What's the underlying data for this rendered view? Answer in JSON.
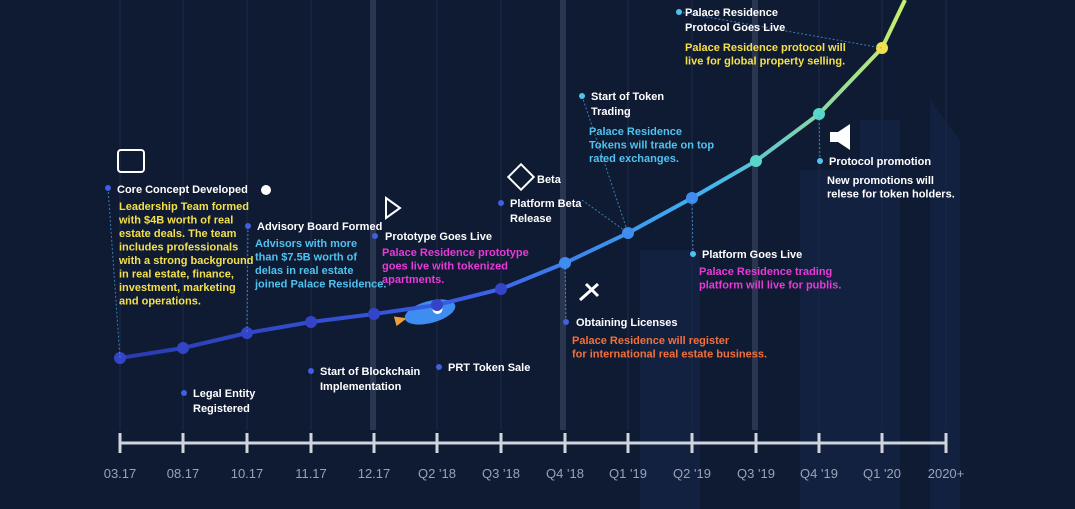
{
  "axis_labels": [
    "03.17",
    "08.17",
    "10.17",
    "11.17",
    "12.17",
    "Q2 '18",
    "Q3 '18",
    "Q4 '18",
    "Q1 '19",
    "Q2 '19",
    "Q3 '19",
    "Q4 '19",
    "Q1 '20",
    "2020+"
  ],
  "beta_label": "Beta",
  "milestones": [
    {
      "title": [
        "Core Concept Developed"
      ],
      "description": [
        "Leadership Team formed",
        "with $4B worth of real",
        "estate deals. The team",
        "includes professionals",
        "with a strong background",
        "in real estate, finance,",
        "investment, marketing",
        "and operations."
      ]
    },
    {
      "title": [
        "Legal Entity",
        "Registered"
      ]
    },
    {
      "title": [
        "Advisory Board Formed"
      ],
      "description": [
        "Advisors with more",
        "than $7.5B worth of",
        "delas in real estate",
        "joined Palace Residence."
      ]
    },
    {
      "title": [
        "Start of Blockchain",
        "Implementation"
      ]
    },
    {
      "title": [
        "Prototype Goes Live"
      ],
      "description": [
        "Palace Residence prototype",
        "goes live with tokenized",
        "apartments."
      ]
    },
    {
      "title": [
        "PRT Token Sale"
      ]
    },
    {
      "title": [
        "Platform Beta",
        "Release"
      ]
    },
    {
      "title": [
        "Obtaining Licenses"
      ],
      "description": [
        "Palace Residence will register",
        "for international real estate business."
      ]
    },
    {
      "title": [
        "Start of Token",
        "Trading"
      ],
      "description": [
        "Palace Residence",
        "Tokens will trade on top",
        "rated exchanges."
      ]
    },
    {
      "title": [
        "Platform Goes Live"
      ],
      "description": [
        "Palace Residence trading",
        "platform will live for publis."
      ]
    },
    {
      "title": [
        "Protocol promotion"
      ],
      "description": [
        "New promotions will",
        "relese for token holders."
      ]
    },
    {
      "title": [
        "Palace Residence",
        "Protocol Goes Live"
      ],
      "description": [
        "Palace Residence protocol will",
        "live for global property selling."
      ]
    }
  ]
}
